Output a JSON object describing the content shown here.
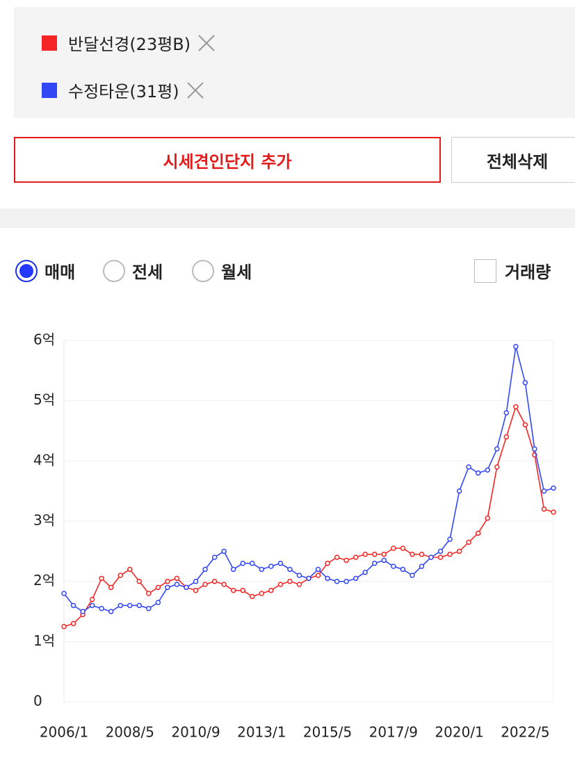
{
  "controls": {
    "add_button": "시세견인단지 추가",
    "delete_button": "전체삭제",
    "radios": [
      "매매",
      "전세",
      "월세"
    ],
    "selected_radio": 0,
    "checkbox": "거래량"
  },
  "chart_data": {
    "type": "line",
    "categories": [
      "2006/1",
      null,
      null,
      null,
      null,
      null,
      null,
      "2008/5",
      null,
      null,
      null,
      null,
      null,
      null,
      "2010/9",
      null,
      null,
      null,
      null,
      null,
      null,
      "2013/1",
      null,
      null,
      null,
      null,
      null,
      null,
      "2015/5",
      null,
      null,
      null,
      null,
      null,
      null,
      "2017/9",
      null,
      null,
      null,
      null,
      null,
      null,
      "2020/1",
      null,
      null,
      null,
      null,
      null,
      null,
      "2022/5",
      null,
      null,
      null
    ],
    "series": [
      {
        "name": "반달선경(23평B)",
        "color": "#f52525",
        "values": [
          1.25,
          1.3,
          1.45,
          1.7,
          2.05,
          1.9,
          2.1,
          2.2,
          2.0,
          1.8,
          1.9,
          2.0,
          2.05,
          1.9,
          1.85,
          1.95,
          2.0,
          1.95,
          1.85,
          1.85,
          1.75,
          1.8,
          1.85,
          1.95,
          2.0,
          1.95,
          2.05,
          2.1,
          2.3,
          2.4,
          2.35,
          2.4,
          2.45,
          2.45,
          2.45,
          2.55,
          2.55,
          2.45,
          2.45,
          2.4,
          2.4,
          2.45,
          2.5,
          2.65,
          2.8,
          3.05,
          3.9,
          4.4,
          4.9,
          4.6,
          4.1,
          3.2,
          3.15
        ]
      },
      {
        "name": "수정타운(31평)",
        "color": "#3347f5",
        "values": [
          1.8,
          1.6,
          1.5,
          1.6,
          1.55,
          1.5,
          1.6,
          1.6,
          1.6,
          1.55,
          1.65,
          1.9,
          1.95,
          1.9,
          2.0,
          2.2,
          2.4,
          2.5,
          2.2,
          2.3,
          2.3,
          2.2,
          2.25,
          2.3,
          2.2,
          2.1,
          2.05,
          2.2,
          2.05,
          2.0,
          2.0,
          2.05,
          2.15,
          2.3,
          2.35,
          2.25,
          2.2,
          2.1,
          2.25,
          2.4,
          2.5,
          2.7,
          3.5,
          3.9,
          3.8,
          3.85,
          4.2,
          4.8,
          5.9,
          5.3,
          4.2,
          3.5,
          3.55
        ]
      }
    ],
    "ylim": [
      0,
      6
    ],
    "yticks": [
      0,
      {
        "value": 1,
        "label": "1억"
      },
      {
        "value": 2,
        "label": "2억"
      },
      {
        "value": 3,
        "label": "3억"
      },
      {
        "value": 4,
        "label": "4억"
      },
      {
        "value": 5,
        "label": "5억"
      },
      {
        "value": 6,
        "label": "6억"
      }
    ],
    "grid": true
  }
}
